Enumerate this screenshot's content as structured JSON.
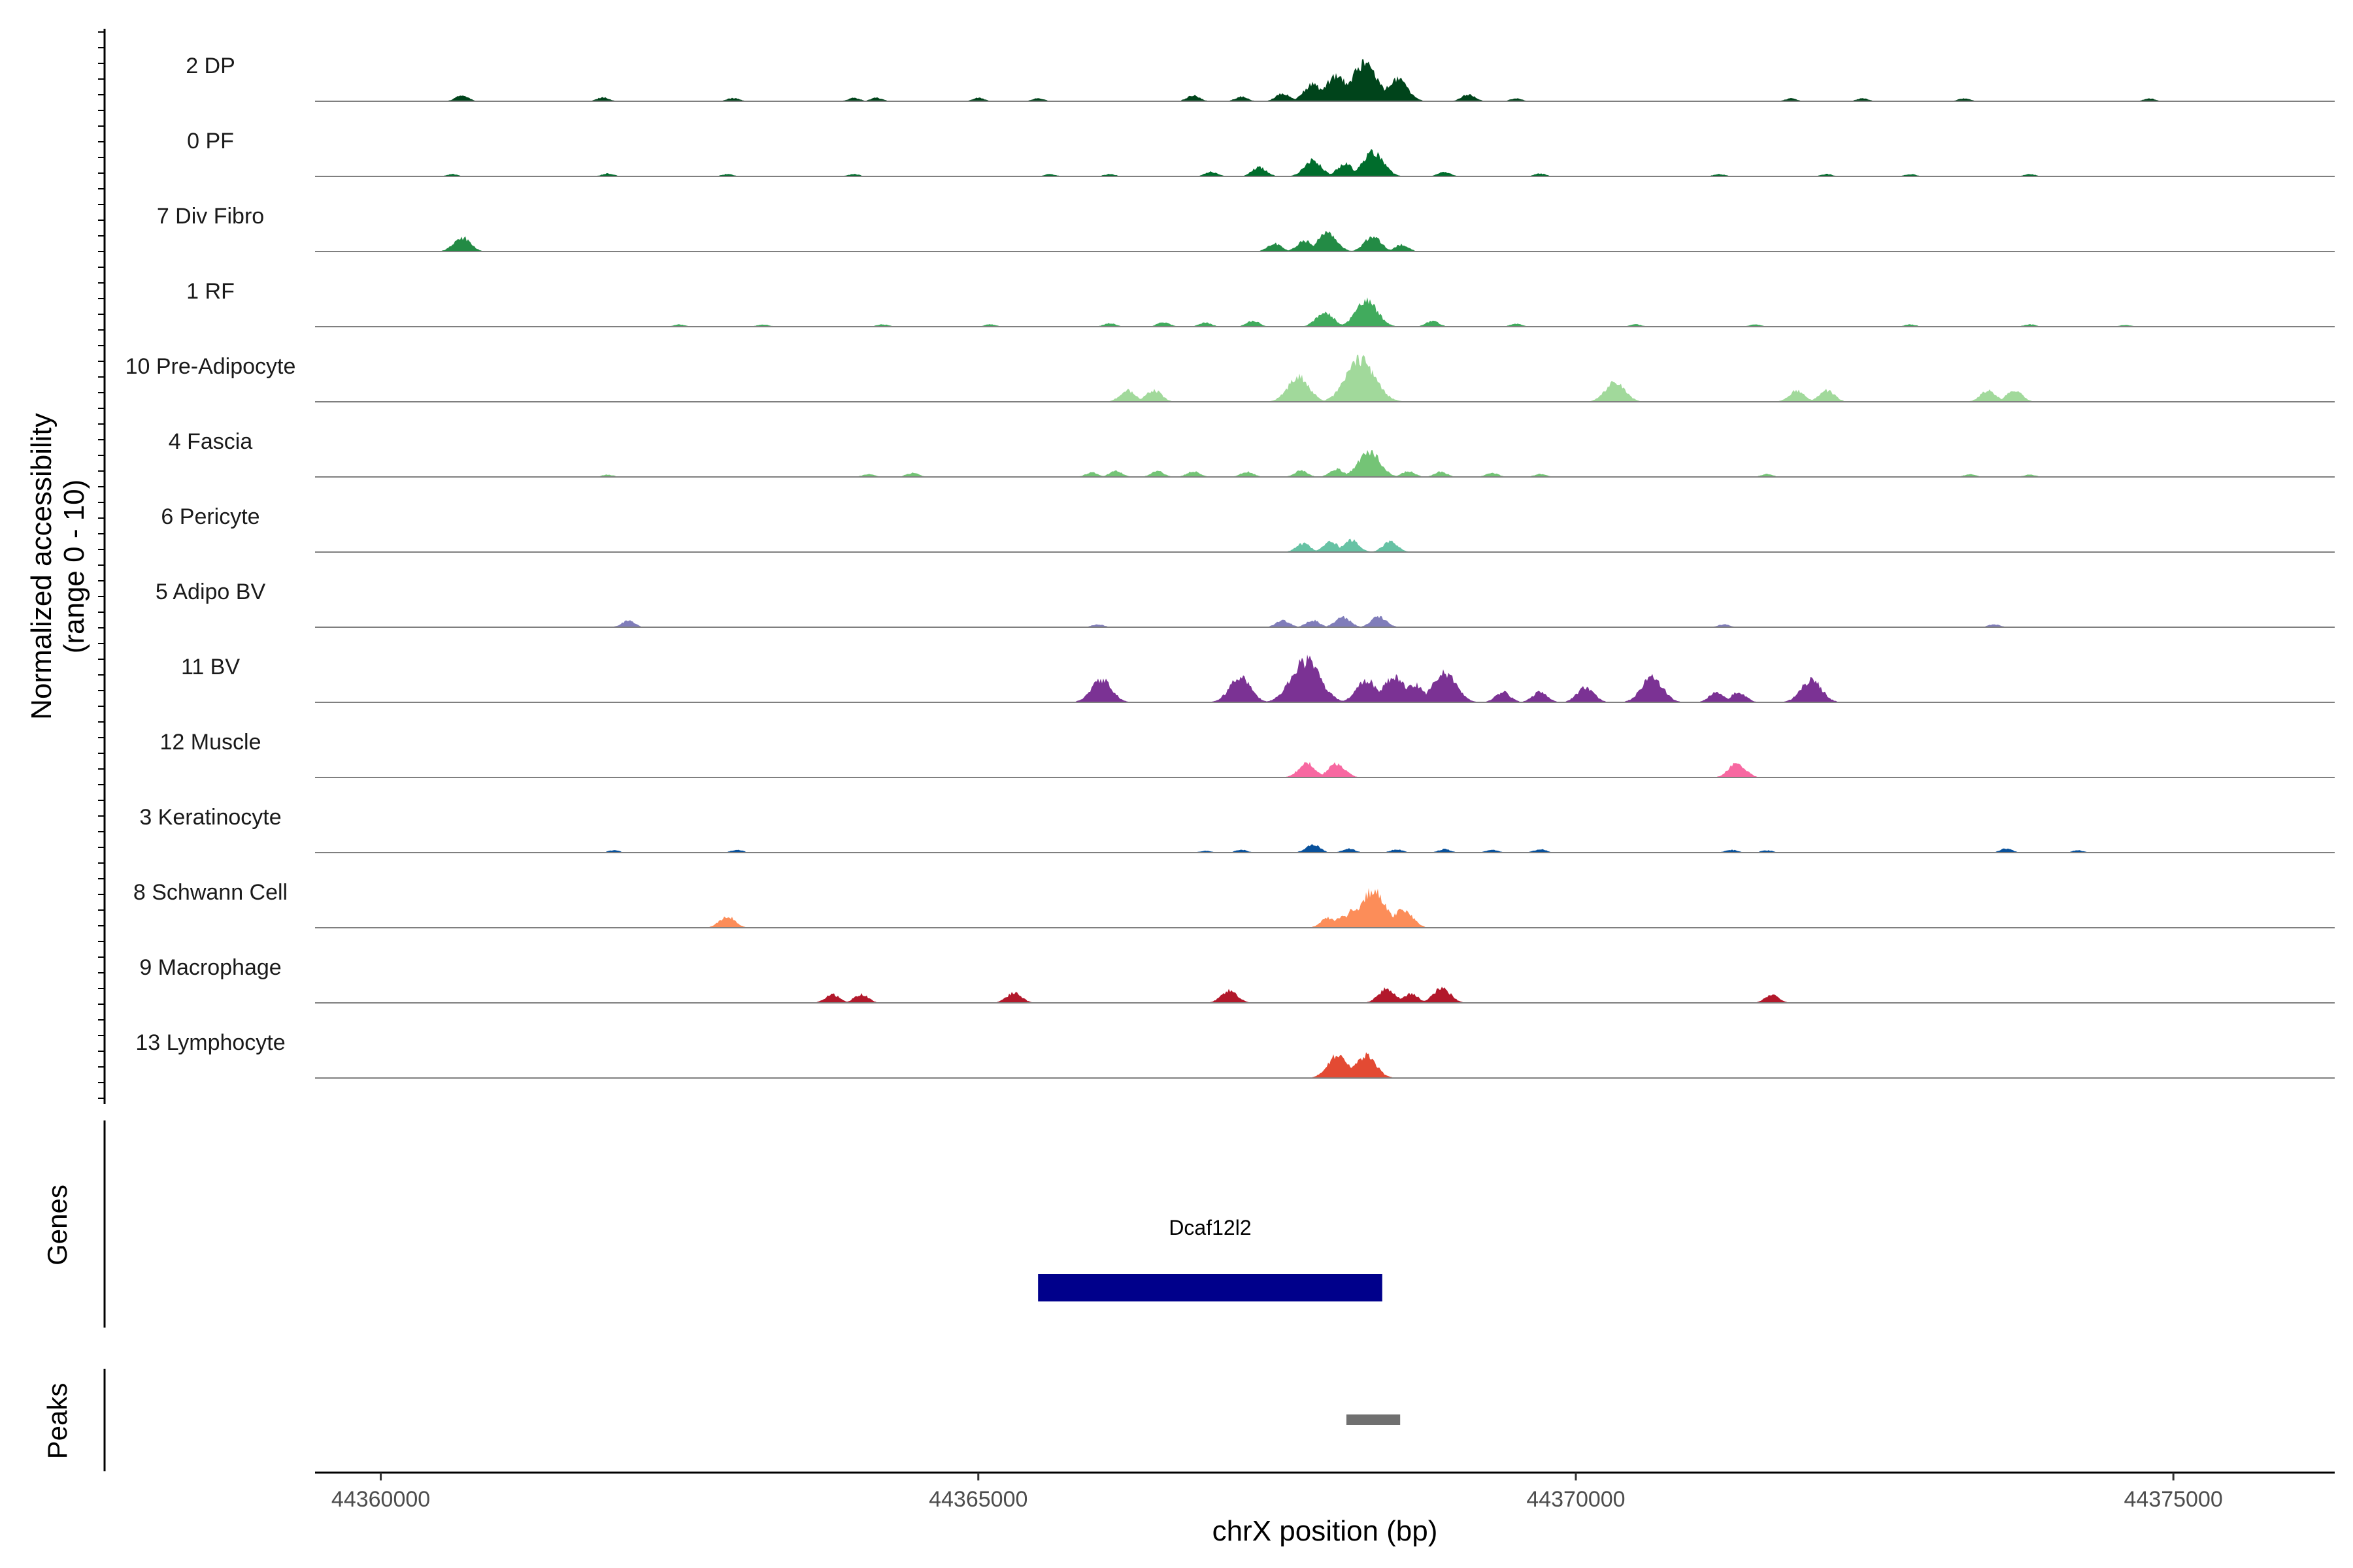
{
  "chart_data": {
    "type": "area",
    "title": "",
    "chromosome": "chrX",
    "xlabel": "chrX position (bp)",
    "ylabel": "Normalized accessibility",
    "ylabel_sub": "(range 0 - 10)",
    "ylim": [
      0,
      10
    ],
    "xlim": [
      44359450,
      44376350
    ],
    "xticks": [
      44360000,
      44365000,
      44370000,
      44375000
    ],
    "xtick_labels": [
      "44360000",
      "44365000",
      "44370000",
      "44375000"
    ],
    "panel_labels": {
      "genes": "Genes",
      "peaks": "Peaks"
    },
    "tracks": [
      {
        "name": "2 DP",
        "color": "#00441b",
        "peaks": [
          [
            44360680,
            1
          ],
          [
            44361860,
            0.7
          ],
          [
            44362950,
            0.6
          ],
          [
            44363960,
            0.6
          ],
          [
            44364150,
            0.6
          ],
          [
            44365000,
            0.6
          ],
          [
            44365500,
            0.5
          ],
          [
            44366800,
            1
          ],
          [
            44367200,
            0.8
          ],
          [
            44367550,
            1.4
          ],
          [
            44367800,
            3
          ],
          [
            44368000,
            4.5
          ],
          [
            44368230,
            6.5
          ],
          [
            44368500,
            4
          ],
          [
            44369100,
            1.2
          ],
          [
            44369500,
            0.5
          ],
          [
            44371800,
            0.5
          ],
          [
            44372400,
            0.5
          ],
          [
            44373250,
            0.5
          ],
          [
            44374800,
            0.5
          ]
        ]
      },
      {
        "name": "0 PF",
        "color": "#006d2c",
        "peaks": [
          [
            44360600,
            0.4
          ],
          [
            44361900,
            0.5
          ],
          [
            44362900,
            0.4
          ],
          [
            44363960,
            0.4
          ],
          [
            44365600,
            0.4
          ],
          [
            44366100,
            0.4
          ],
          [
            44366950,
            0.8
          ],
          [
            44367350,
            1.6
          ],
          [
            44367800,
            2.8
          ],
          [
            44368070,
            2.2
          ],
          [
            44368300,
            4.3
          ],
          [
            44368900,
            0.8
          ],
          [
            44369700,
            0.5
          ],
          [
            44371200,
            0.4
          ],
          [
            44372100,
            0.4
          ],
          [
            44372800,
            0.4
          ],
          [
            44373800,
            0.4
          ]
        ]
      },
      {
        "name": "7 Div Fibro",
        "color": "#238b45",
        "peaks": [
          [
            44360680,
            2.5
          ],
          [
            44367480,
            1.4
          ],
          [
            44367730,
            1.9
          ],
          [
            44367920,
            3.3
          ],
          [
            44368300,
            2.6
          ],
          [
            44368540,
            1.2
          ]
        ]
      },
      {
        "name": "1 RF",
        "color": "#41ab5d",
        "peaks": [
          [
            44362500,
            0.4
          ],
          [
            44363200,
            0.4
          ],
          [
            44364200,
            0.4
          ],
          [
            44365100,
            0.4
          ],
          [
            44366100,
            0.6
          ],
          [
            44366550,
            0.8
          ],
          [
            44366900,
            0.7
          ],
          [
            44367300,
            1
          ],
          [
            44367900,
            2.6
          ],
          [
            44368250,
            4.5
          ],
          [
            44368800,
            1
          ],
          [
            44369500,
            0.5
          ],
          [
            44370500,
            0.4
          ],
          [
            44371500,
            0.4
          ],
          [
            44372800,
            0.4
          ],
          [
            44373800,
            0.4
          ],
          [
            44374600,
            0.3
          ]
        ]
      },
      {
        "name": "10 Pre-Adipocyte",
        "color": "#a1d99b",
        "peaks": [
          [
            44366250,
            2
          ],
          [
            44366470,
            2
          ],
          [
            44367680,
            4.4
          ],
          [
            44368200,
            7.4
          ],
          [
            44370330,
            3.6
          ],
          [
            44371850,
            2
          ],
          [
            44372100,
            2
          ],
          [
            44373450,
            2
          ],
          [
            44373670,
            2
          ]
        ]
      },
      {
        "name": "4 Fascia",
        "color": "#74c476",
        "peaks": [
          [
            44361900,
            0.4
          ],
          [
            44364080,
            0.5
          ],
          [
            44364450,
            0.7
          ],
          [
            44365950,
            0.8
          ],
          [
            44366150,
            1
          ],
          [
            44366500,
            1
          ],
          [
            44366800,
            1
          ],
          [
            44367250,
            0.9
          ],
          [
            44367700,
            1.1
          ],
          [
            44368000,
            1.4
          ],
          [
            44368270,
            4.5
          ],
          [
            44368600,
            1
          ],
          [
            44368870,
            0.9
          ],
          [
            44369300,
            0.7
          ],
          [
            44369700,
            0.5
          ],
          [
            44371600,
            0.5
          ],
          [
            44373300,
            0.5
          ],
          [
            44373800,
            0.4
          ]
        ]
      },
      {
        "name": "6 Pericyte",
        "color": "#66c2a4",
        "peaks": [
          [
            44367720,
            1.5
          ],
          [
            44367950,
            1.8
          ],
          [
            44368120,
            2.1
          ],
          [
            44368450,
            1.8
          ]
        ]
      },
      {
        "name": "5 Adipo BV",
        "color": "#807dba",
        "peaks": [
          [
            44362070,
            1.1
          ],
          [
            44366000,
            0.5
          ],
          [
            44367550,
            1.2
          ],
          [
            44367800,
            1.2
          ],
          [
            44368050,
            1.8
          ],
          [
            44368350,
            1.9
          ],
          [
            44371240,
            0.5
          ],
          [
            44373500,
            0.5
          ]
        ]
      },
      {
        "name": "11 BV",
        "color": "#7b3294",
        "peaks": [
          [
            44366030,
            4
          ],
          [
            44367190,
            4.3
          ],
          [
            44367740,
            7.4
          ],
          [
            44368250,
            3.9
          ],
          [
            44368480,
            4.5
          ],
          [
            44368650,
            3.2
          ],
          [
            44368900,
            5.2
          ],
          [
            44369390,
            1.8
          ],
          [
            44369700,
            1.8
          ],
          [
            44370080,
            2.6
          ],
          [
            44370640,
            4.4
          ],
          [
            44371180,
            1.8
          ],
          [
            44371360,
            1.8
          ],
          [
            44371970,
            4
          ]
        ]
      },
      {
        "name": "12 Muscle",
        "color": "#f768a1",
        "peaks": [
          [
            44367750,
            2.5
          ],
          [
            44368000,
            2.5
          ],
          [
            44371350,
            2.5
          ]
        ]
      },
      {
        "name": "3 Keratinocyte",
        "color": "#08519c",
        "peaks": [
          [
            44361950,
            0.4
          ],
          [
            44362980,
            0.5
          ],
          [
            44366900,
            0.3
          ],
          [
            44367200,
            0.5
          ],
          [
            44367800,
            1.4
          ],
          [
            44368100,
            0.7
          ],
          [
            44368500,
            0.6
          ],
          [
            44368900,
            0.6
          ],
          [
            44369300,
            0.5
          ],
          [
            44369700,
            0.6
          ],
          [
            44371300,
            0.5
          ],
          [
            44371600,
            0.4
          ],
          [
            44373600,
            0.7
          ],
          [
            44374200,
            0.4
          ]
        ]
      },
      {
        "name": "8 Schwann Cell",
        "color": "#fc8d59",
        "peaks": [
          [
            44362900,
            2
          ],
          [
            44367930,
            1.7
          ],
          [
            44368060,
            2.1
          ],
          [
            44368160,
            3.4
          ],
          [
            44368300,
            6.5
          ],
          [
            44368550,
            3.3
          ]
        ]
      },
      {
        "name": "9 Macrophage",
        "color": "#b2182b",
        "peaks": [
          [
            44363780,
            1.5
          ],
          [
            44364020,
            1.5
          ],
          [
            44365300,
            1.8
          ],
          [
            44367100,
            2.2
          ],
          [
            44368420,
            2.5
          ],
          [
            44368620,
            1.6
          ],
          [
            44368880,
            2.6
          ],
          [
            44371640,
            1.4
          ]
        ]
      },
      {
        "name": "13 Lymphocyte",
        "color": "#e34a33",
        "peaks": [
          [
            44368010,
            4
          ],
          [
            44368240,
            4
          ]
        ]
      }
    ],
    "genes": [
      {
        "name": "Dcaf12l2",
        "start": 44365500,
        "end": 44368380,
        "color": "#00008b"
      }
    ],
    "peak_regions": [
      {
        "start": 44368080,
        "end": 44368530,
        "color": "#707070"
      }
    ]
  }
}
